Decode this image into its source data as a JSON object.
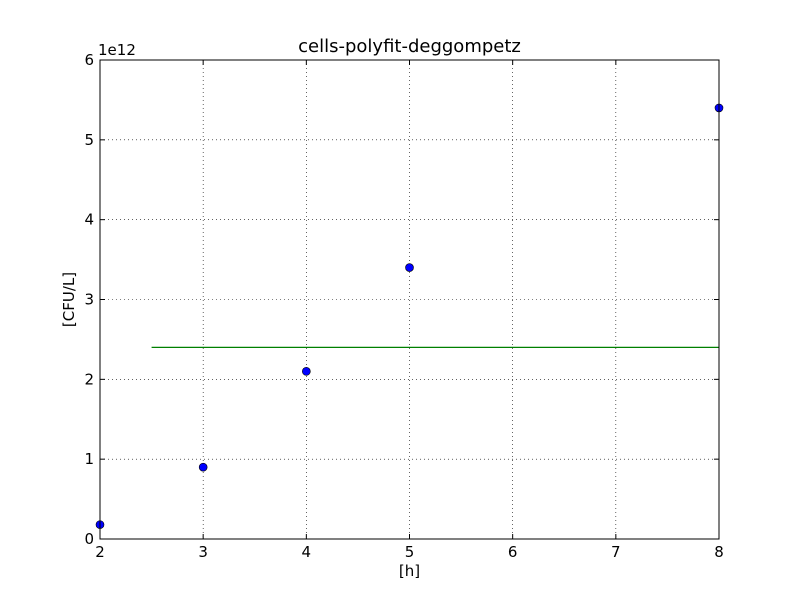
{
  "chart_data": {
    "type": "scatter",
    "title": "cells-polyfit-deggompetz",
    "xlabel": "[h]",
    "ylabel": "[CFU/L]",
    "y_offset_label": "1e12",
    "xlim": [
      2,
      8
    ],
    "ylim": [
      0,
      6
    ],
    "x_ticks": [
      "2",
      "3",
      "4",
      "5",
      "6",
      "7",
      "8"
    ],
    "y_ticks": [
      "0",
      "1",
      "2",
      "3",
      "4",
      "5",
      "6"
    ],
    "grid": true,
    "series": [
      {
        "kind": "scatter",
        "color": "#0000ff",
        "x": [
          2,
          3,
          4,
          5,
          8
        ],
        "y": [
          0.18,
          0.9,
          2.1,
          3.4,
          5.4
        ]
      },
      {
        "kind": "line",
        "color": "#008000",
        "x": [
          2.5,
          8
        ],
        "y": [
          2.4,
          2.4
        ]
      }
    ]
  }
}
